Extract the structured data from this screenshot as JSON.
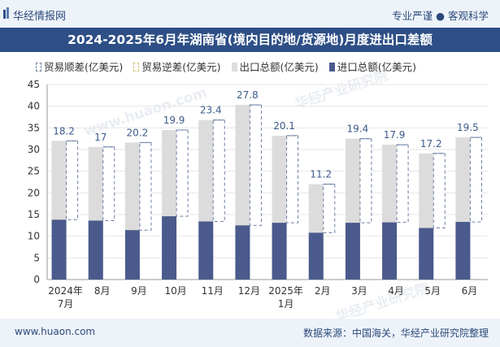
{
  "header": {
    "brand": "华经情报网",
    "tagline": "专业严谨 ● 客观科学"
  },
  "title": "2024-2025年6月年湖南省(境内目的地/货源地)月度进出口差额",
  "legend": {
    "surplus": "贸易顺差(亿美元)",
    "deficit": "贸易逆差(亿美元)",
    "export": "出口总额(亿美元)",
    "import": "进口总额(亿美元)"
  },
  "watermarks": [
    "华经产业研究院",
    "www.huaon.com",
    "华经产业研究院"
  ],
  "footer": {
    "url": "www.huaon.com",
    "source": "数据来源：中国海关，华经产业研究院整理"
  },
  "colors": {
    "export": "#dcdcdc",
    "import": "#4a5a8c",
    "surplus_border": "#6c7fa3",
    "label": "#3b5a8a",
    "header_bg": "#2e4f86"
  },
  "chart_data": {
    "type": "bar",
    "categories": [
      "2024年\n7月",
      "8月",
      "9月",
      "10月",
      "11月",
      "12月",
      "2025年\n1月",
      "2月",
      "3月",
      "4月",
      "5月",
      "6月"
    ],
    "ylim": [
      0,
      45
    ],
    "yticks": [
      0,
      5,
      10,
      15,
      20,
      25,
      30,
      35,
      40,
      45
    ],
    "grid": true,
    "legend_position": "top",
    "series": [
      {
        "name": "出口总额(亿美元)",
        "values": [
          32.0,
          30.6,
          31.6,
          34.5,
          36.8,
          40.3,
          33.2,
          22.0,
          32.5,
          31.1,
          29.1,
          32.8
        ]
      },
      {
        "name": "进口总额(亿美元)",
        "values": [
          13.8,
          13.6,
          11.4,
          14.6,
          13.4,
          12.5,
          13.1,
          10.8,
          13.1,
          13.2,
          11.9,
          13.3
        ]
      },
      {
        "name": "贸易顺差(亿美元)",
        "values": [
          18.2,
          17,
          20.2,
          19.9,
          23.4,
          27.8,
          20.1,
          11.2,
          19.4,
          17.9,
          17.2,
          19.5
        ]
      },
      {
        "name": "贸易逆差(亿美元)",
        "values": [
          0,
          0,
          0,
          0,
          0,
          0,
          0,
          0,
          0,
          0,
          0,
          0
        ]
      }
    ],
    "data_labels": [
      "18.2",
      "17",
      "20.2",
      "19.9",
      "23.4",
      "27.8",
      "20.1",
      "11.2",
      "19.4",
      "17.9",
      "17.2",
      "19.5"
    ]
  }
}
